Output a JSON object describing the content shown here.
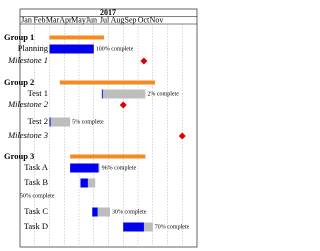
{
  "header": {
    "year": "2017",
    "months": [
      "Jan",
      "Feb",
      "Mar",
      "Apr",
      "May",
      "Jun",
      "Jul",
      "Aug",
      "Sep",
      "Oct",
      "Nov"
    ]
  },
  "rows": [
    {
      "label": "Group 1",
      "kind": "group",
      "start": 2,
      "end": 5.7
    },
    {
      "label": "Planning",
      "kind": "task",
      "start": 2,
      "end": 5,
      "progress": 100,
      "progress_label": "100% complete"
    },
    {
      "label": "Milestone 1",
      "kind": "milestone",
      "at": 8.4
    },
    {
      "label": "Group 2",
      "kind": "group",
      "start": 2.7,
      "end": 9.15
    },
    {
      "label": "Test 1",
      "kind": "task",
      "start": 5.55,
      "end": 8.5,
      "progress": 2,
      "progress_label": "2% complete"
    },
    {
      "label": "Milestone 2",
      "kind": "milestone",
      "at": 7
    },
    {
      "label": "Test 2",
      "kind": "task",
      "start": 2,
      "end": 3.4,
      "progress": 5,
      "progress_label": "5% complete"
    },
    {
      "label": "Milestone 3",
      "kind": "milestone",
      "at": 11
    },
    {
      "label": "Group 3",
      "kind": "group",
      "start": 3.4,
      "end": 8.5
    },
    {
      "label": "Task A",
      "kind": "task",
      "start": 3.4,
      "end": 5.4,
      "progress": 96,
      "progress_label": "96% complete"
    },
    {
      "label": "Task B",
      "kind": "task",
      "start": 4.1,
      "end": 5.1,
      "progress": 50,
      "progress_label": "50% complete"
    },
    {
      "label": "Task C",
      "kind": "task",
      "start": 4.9,
      "end": 6.1,
      "progress": 30,
      "progress_label": "30% complete"
    },
    {
      "label": "Task D",
      "kind": "task",
      "start": 7,
      "end": 9,
      "progress": 70,
      "progress_label": "70% complete"
    }
  ]
}
